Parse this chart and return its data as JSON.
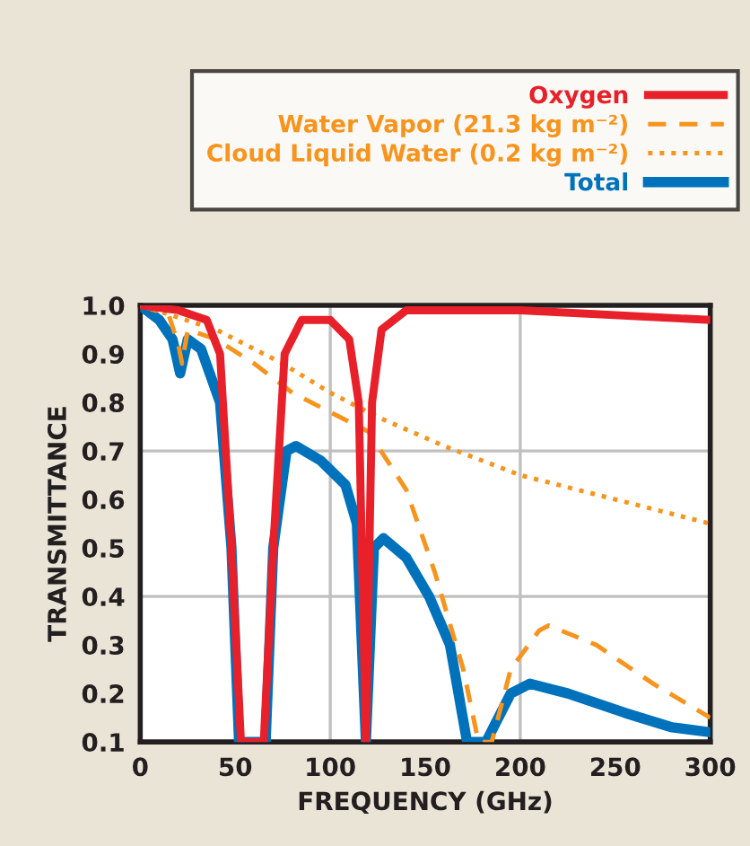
{
  "chart_data": {
    "type": "line",
    "xlabel": "FREQUENCY (GHz)",
    "ylabel": "TRANSMITTANCE",
    "xlim": [
      0,
      300
    ],
    "ylim": [
      0.1,
      1.0
    ],
    "xticks": [
      0,
      50,
      100,
      150,
      200,
      250,
      300
    ],
    "yticks": [
      0.1,
      0.2,
      0.3,
      0.4,
      0.5,
      0.6,
      0.7,
      0.8,
      0.9,
      {
        "value": 1.0,
        "label": "1.0"
      }
    ],
    "grid": false,
    "legend": "top",
    "marker": "none",
    "ref_lines": [
      {
        "axis": "x",
        "value": 100,
        "color": "#c0c0c0"
      },
      {
        "axis": "x",
        "value": 200,
        "color": "#c0c0c0"
      },
      {
        "axis": "y",
        "value": 0.4,
        "color": "#c0c0c0"
      },
      {
        "axis": "y",
        "value": 0.7,
        "color": "#c0c0c0"
      }
    ],
    "series": [
      {
        "name": "Oxygen",
        "color": "#e8202a",
        "line_style": "solid",
        "x": [
          0,
          20,
          35,
          42,
          48,
          53,
          65,
          70,
          76,
          85,
          100,
          110,
          115,
          118.75,
          122,
          127,
          140,
          200,
          300
        ],
        "values": [
          1.0,
          0.99,
          0.97,
          0.9,
          0.5,
          0.1,
          0.1,
          0.5,
          0.9,
          0.97,
          0.97,
          0.93,
          0.8,
          0.1,
          0.8,
          0.95,
          0.99,
          0.99,
          0.97
        ]
      },
      {
        "name": "Water Vapor (21.3 kg m⁻²)",
        "color": "#f7941d",
        "line_style": "dashed",
        "x": [
          0,
          15,
          20,
          22,
          25,
          40,
          60,
          80,
          100,
          120,
          140,
          155,
          170,
          178,
          185,
          195,
          210,
          215,
          240,
          270,
          300
        ],
        "values": [
          1.0,
          0.98,
          0.92,
          0.88,
          0.95,
          0.93,
          0.88,
          0.82,
          0.78,
          0.74,
          0.62,
          0.45,
          0.25,
          0.1,
          0.1,
          0.25,
          0.33,
          0.34,
          0.3,
          0.22,
          0.15
        ]
      },
      {
        "name": "Cloud Liquid Water (0.2 kg m⁻²)",
        "color": "#f7941d",
        "line_style": "dotted",
        "x": [
          0,
          40,
          75,
          100,
          125,
          160,
          200,
          250,
          300
        ],
        "values": [
          1.0,
          0.95,
          0.88,
          0.82,
          0.77,
          0.71,
          0.65,
          0.6,
          0.55
        ]
      },
      {
        "name": "Total",
        "color": "#0072bc",
        "line_style": "solid",
        "x": [
          0,
          10,
          17,
          21,
          25,
          32,
          42,
          48,
          52,
          66,
          70,
          77,
          82,
          95,
          108,
          114,
          118.75,
          123,
          128,
          140,
          152,
          163,
          172,
          182,
          195,
          205,
          225,
          255,
          280,
          300
        ],
        "values": [
          1.0,
          0.97,
          0.93,
          0.86,
          0.93,
          0.91,
          0.8,
          0.5,
          0.1,
          0.1,
          0.5,
          0.7,
          0.71,
          0.68,
          0.63,
          0.55,
          0.1,
          0.5,
          0.52,
          0.48,
          0.4,
          0.3,
          0.1,
          0.1,
          0.2,
          0.22,
          0.2,
          0.16,
          0.13,
          0.12
        ]
      }
    ]
  }
}
